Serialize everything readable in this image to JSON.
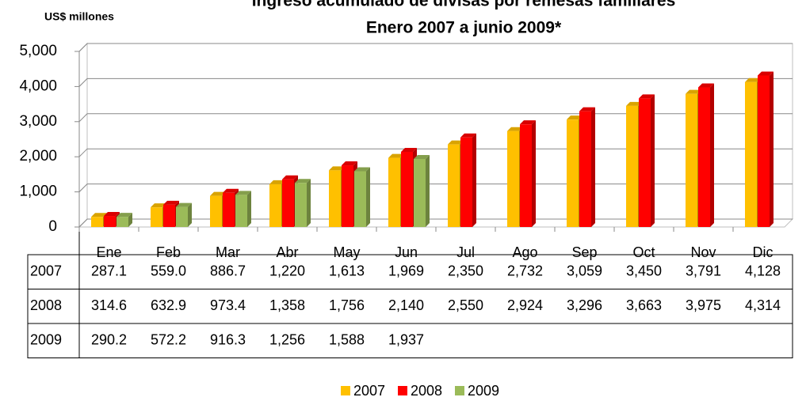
{
  "chart_data": {
    "type": "bar",
    "title": "Ingreso acumulado de divisas por remesas familiares",
    "subtitle": "Enero 2007 a junio 2009*",
    "y_label": "US$ millones",
    "categories": [
      "Ene",
      "Feb",
      "Mar",
      "Abr",
      "May",
      "Jun",
      "Jul",
      "Ago",
      "Sep",
      "Oct",
      "Nov",
      "Dic"
    ],
    "series": [
      {
        "name": "2007",
        "color": "#ffc000",
        "values": [
          287.1,
          559.0,
          886.7,
          1220,
          1613,
          1969,
          2350,
          2732,
          3059,
          3450,
          3791,
          4128
        ],
        "value_labels": [
          "287.1",
          "559.0",
          "886.7",
          "1,220",
          "1,613",
          "1,969",
          "2,350",
          "2,732",
          "3,059",
          "3,450",
          "3,791",
          "4,128"
        ]
      },
      {
        "name": "2008",
        "color": "#ff0000",
        "values": [
          314.6,
          632.9,
          973.4,
          1358,
          1756,
          2140,
          2550,
          2924,
          3296,
          3663,
          3975,
          4314
        ],
        "value_labels": [
          "314.6",
          "632.9",
          "973.4",
          "1,358",
          "1,756",
          "2,140",
          "2,550",
          "2,924",
          "3,296",
          "3,663",
          "3,975",
          "4,314"
        ]
      },
      {
        "name": "2009",
        "color": "#9bbb59",
        "values": [
          290.2,
          572.2,
          916.3,
          1256,
          1588,
          1937,
          null,
          null,
          null,
          null,
          null,
          null
        ],
        "value_labels": [
          "290.2",
          "572.2",
          "916.3",
          "1,256",
          "1,588",
          "1,937",
          null,
          null,
          null,
          null,
          null,
          null
        ]
      }
    ],
    "ylim": [
      0,
      5000
    ],
    "yticks": [
      0,
      {
        "value": 1000,
        "label": "1,000"
      },
      {
        "value": 2000,
        "label": "2,000"
      },
      {
        "value": 3000,
        "label": "3,000"
      },
      {
        "value": 4000,
        "label": "4,000"
      },
      {
        "value": 5000,
        "label": "5,000"
      }
    ],
    "grid": true,
    "legend": "bottom"
  }
}
